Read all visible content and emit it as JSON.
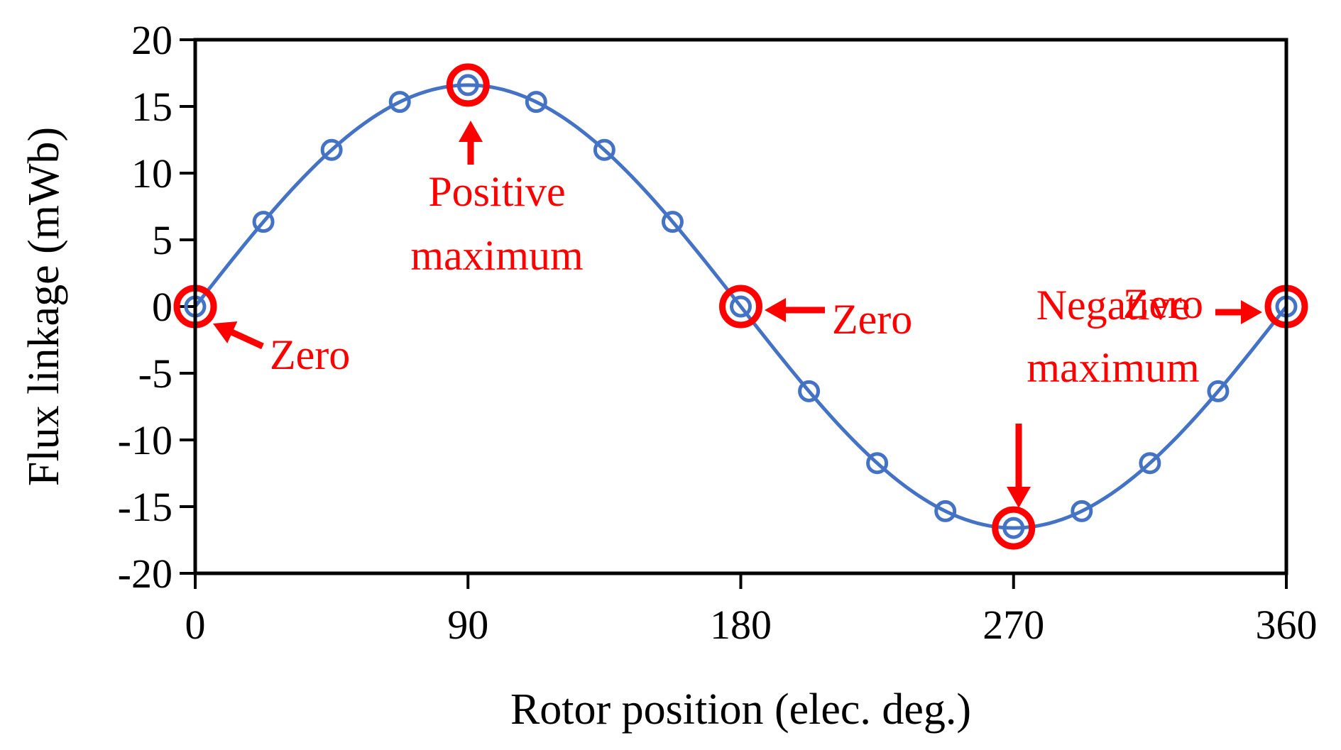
{
  "chart_data": {
    "type": "line",
    "title": "",
    "xlabel": "Rotor position (elec. deg.)",
    "ylabel": "Flux linkage (mWb)",
    "xlim": [
      0,
      360
    ],
    "ylim": [
      -20,
      20
    ],
    "x_ticks": [
      0,
      90,
      180,
      270,
      360
    ],
    "x_tick_labels": [
      "0",
      "90",
      "180",
      "270",
      "360"
    ],
    "y_ticks": [
      20,
      15,
      10,
      5,
      0,
      -5,
      -10,
      -15,
      -20
    ],
    "y_tick_labels": [
      "20",
      "15",
      "10",
      "5",
      "0",
      "-5",
      "-10",
      "-15",
      "-20"
    ],
    "grid": false,
    "series": [
      {
        "name": "Flux linkage",
        "style": "smooth line with circle markers",
        "amplitude": 16.6,
        "x": [
          0,
          22.5,
          45,
          67.5,
          90,
          112.5,
          135,
          157.5,
          180,
          202.5,
          225,
          247.5,
          270,
          292.5,
          315,
          337.5,
          360
        ],
        "values": [
          0,
          6.35,
          11.74,
          15.34,
          16.6,
          15.34,
          11.74,
          6.35,
          0,
          -6.35,
          -11.74,
          -15.34,
          -16.6,
          -15.34,
          -11.74,
          -6.35,
          0
        ]
      }
    ],
    "annotations": [
      {
        "lines": [
          "Zero"
        ],
        "point": [
          0,
          0
        ]
      },
      {
        "lines": [
          "Positive",
          "maximum"
        ],
        "point": [
          90,
          16.6
        ]
      },
      {
        "lines": [
          "Zero"
        ],
        "point": [
          180,
          0
        ]
      },
      {
        "lines": [
          "Negative",
          "maximum"
        ],
        "point": [
          270,
          -16.6
        ]
      },
      {
        "lines": [
          "Zero"
        ],
        "point": [
          360,
          0
        ]
      }
    ]
  },
  "colors": {
    "series": "#4472c4",
    "highlight": "#ff0000",
    "axis": "#000000",
    "text": "#000000",
    "background": "#ffffff"
  }
}
